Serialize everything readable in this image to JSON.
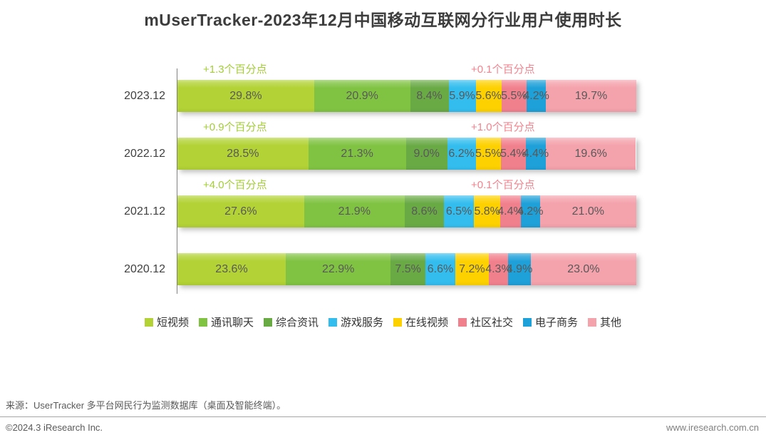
{
  "title": "mUserTracker-2023年12月中国移动互联网分行业用户使用时长",
  "chart_data": {
    "type": "bar",
    "variant": "horizontal-stacked-100",
    "unit": "%",
    "xlim": [
      0,
      100
    ],
    "grid": false,
    "legend_position": "bottom",
    "categories": [
      "2023.12",
      "2022.12",
      "2021.12",
      "2020.12"
    ],
    "series": [
      {
        "name": "短视频",
        "color": "#b2d235",
        "values": [
          29.8,
          28.5,
          27.6,
          23.6
        ]
      },
      {
        "name": "通讯聊天",
        "color": "#80c342",
        "values": [
          20.9,
          21.3,
          21.9,
          22.9
        ]
      },
      {
        "name": "综合资讯",
        "color": "#69aa45",
        "values": [
          8.4,
          9.0,
          8.6,
          7.5
        ]
      },
      {
        "name": "游戏服务",
        "color": "#33bdee",
        "values": [
          5.9,
          6.2,
          6.5,
          6.6
        ]
      },
      {
        "name": "在线视频",
        "color": "#fdd100",
        "values": [
          5.6,
          5.5,
          5.8,
          7.2
        ]
      },
      {
        "name": "社区社交",
        "color": "#f1808d",
        "values": [
          5.5,
          5.4,
          4.4,
          4.3
        ]
      },
      {
        "name": "电子商务",
        "color": "#1ea0d8",
        "values": [
          4.2,
          4.4,
          4.2,
          4.9
        ]
      },
      {
        "name": "其他",
        "color": "#f4a2ac",
        "values": [
          19.7,
          19.6,
          21.0,
          23.0
        ]
      }
    ],
    "annotations": [
      {
        "category": "2023.12",
        "left_label": "+1.3个百分点",
        "right_label": "+0.1个百分点"
      },
      {
        "category": "2022.12",
        "left_label": "+0.9个百分点",
        "right_label": "+1.0个百分点"
      },
      {
        "category": "2021.12",
        "left_label": "+4.0个百分点",
        "right_label": "+0.1个百分点"
      }
    ],
    "annotation_colors": {
      "left": "#a5cd39",
      "right": "#f2848f"
    }
  },
  "footer": {
    "source": "来源：UserTracker 多平台网民行为监测数据库（桌面及智能终端）。",
    "copyright": "©2024.3 iResearch Inc.",
    "website": "www.iresearch.com.cn"
  }
}
